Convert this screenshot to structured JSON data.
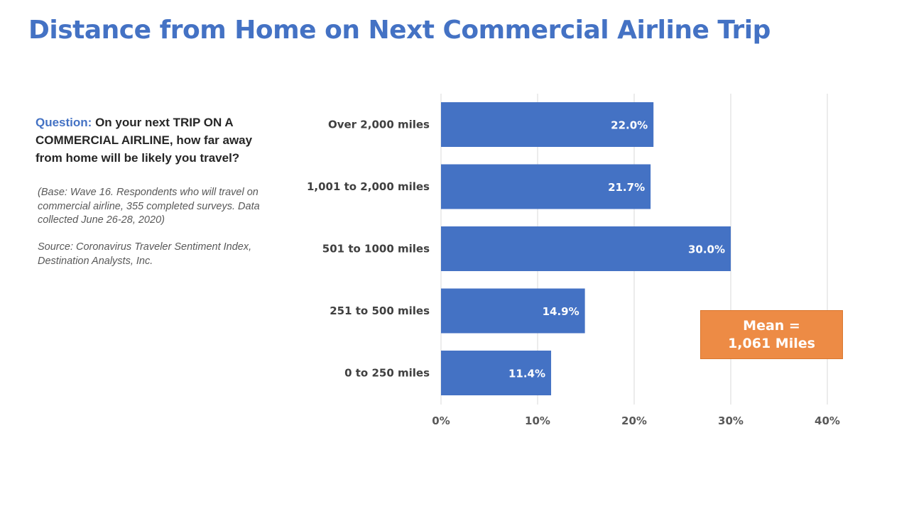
{
  "title": "Distance from Home on Next Commercial Airline Trip",
  "question": {
    "label": "Question:",
    "text": "On your next TRIP ON A COMMERCIAL AIRLINE, how far away from home will be likely you travel?"
  },
  "base_note": "(Base: Wave 16. Respondents who will travel on commercial airline, 355 completed surveys. Data collected June 26-28, 2020)",
  "source_note": "Source: Coronavirus Traveler Sentiment Index, Destination Analysts, Inc.",
  "mean_box": {
    "line1": "Mean =",
    "line2": "1,061 Miles",
    "color": "#ED8B45"
  },
  "chart_data": {
    "type": "bar",
    "orientation": "horizontal",
    "categories": [
      "Over 2,000 miles",
      "1,001 to 2,000 miles",
      "501 to 1000 miles",
      "251 to 500 miles",
      "0 to 250 miles"
    ],
    "values": [
      22.0,
      21.7,
      30.0,
      14.9,
      11.4
    ],
    "value_labels": [
      "22.0%",
      "21.7%",
      "30.0%",
      "14.9%",
      "11.4%"
    ],
    "xlim": [
      0,
      40
    ],
    "xticks": [
      0,
      10,
      20,
      30,
      40
    ],
    "xtick_labels": [
      "0%",
      "10%",
      "20%",
      "30%",
      "40%"
    ],
    "grid": true,
    "bar_color": "#4472C4",
    "label_color": "#ffffff"
  }
}
